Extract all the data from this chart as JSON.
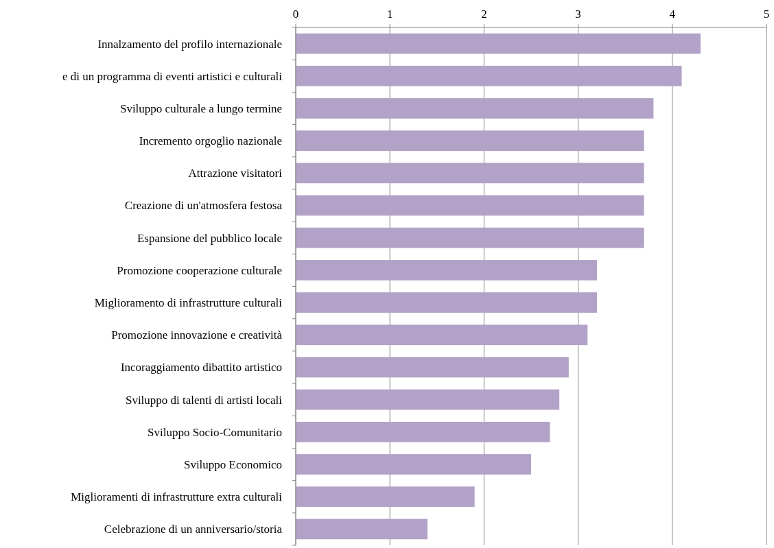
{
  "chart_data": {
    "type": "bar",
    "orientation": "horizontal",
    "categories": [
      "Innalzamento del profilo internazionale",
      "e di un programma di eventi artistici e culturali",
      "Sviluppo culturale a lungo termine",
      "Incremento orgoglio nazionale",
      "Attrazione visitatori",
      "Creazione di un'atmosfera festosa",
      "Espansione del pubblico locale",
      "Promozione cooperazione culturale",
      "Miglioramento di infrastrutture culturali",
      "Promozione innovazione e creatività",
      "Incoraggiamento dibattito artistico",
      "Sviluppo di talenti di artisti locali",
      "Sviluppo Socio-Comunitario",
      "Sviluppo Economico",
      "Miglioramenti di infrastrutture extra culturali",
      "Celebrazione di un anniversario/storia"
    ],
    "values": [
      4.3,
      4.1,
      3.8,
      3.7,
      3.7,
      3.7,
      3.7,
      3.2,
      3.2,
      3.1,
      2.9,
      2.8,
      2.7,
      2.5,
      1.9,
      1.4
    ],
    "color": "#b3a2c7",
    "xlim": [
      0,
      5
    ],
    "xticks": [
      0,
      1,
      2,
      3,
      4,
      5
    ],
    "grid": "x"
  }
}
